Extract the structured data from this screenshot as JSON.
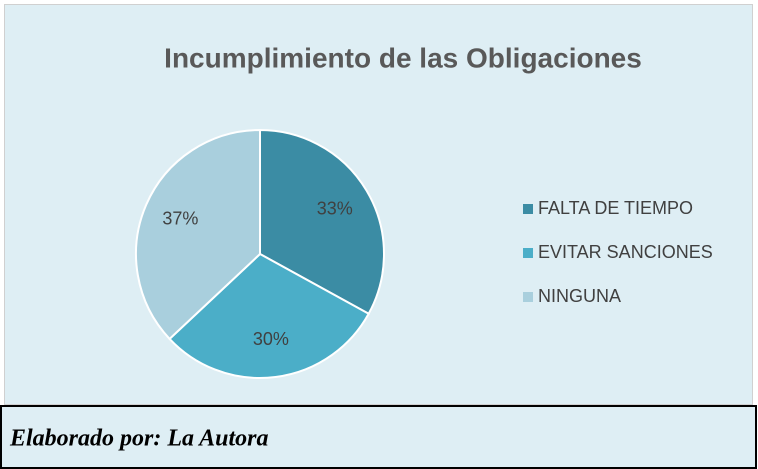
{
  "chart_data": {
    "type": "pie",
    "title": "Incumplimiento de las Obligaciones",
    "categories": [
      "FALTA DE TIEMPO",
      "EVITAR SANCIONES",
      "NINGUNA"
    ],
    "values": [
      33,
      30,
      37
    ],
    "value_labels": [
      "33%",
      "30%",
      "37%"
    ],
    "colors": [
      "#3b8ca4",
      "#4baec8",
      "#a9cfdd"
    ],
    "legend": "right"
  },
  "caption": "Elaborado por: La Autora"
}
